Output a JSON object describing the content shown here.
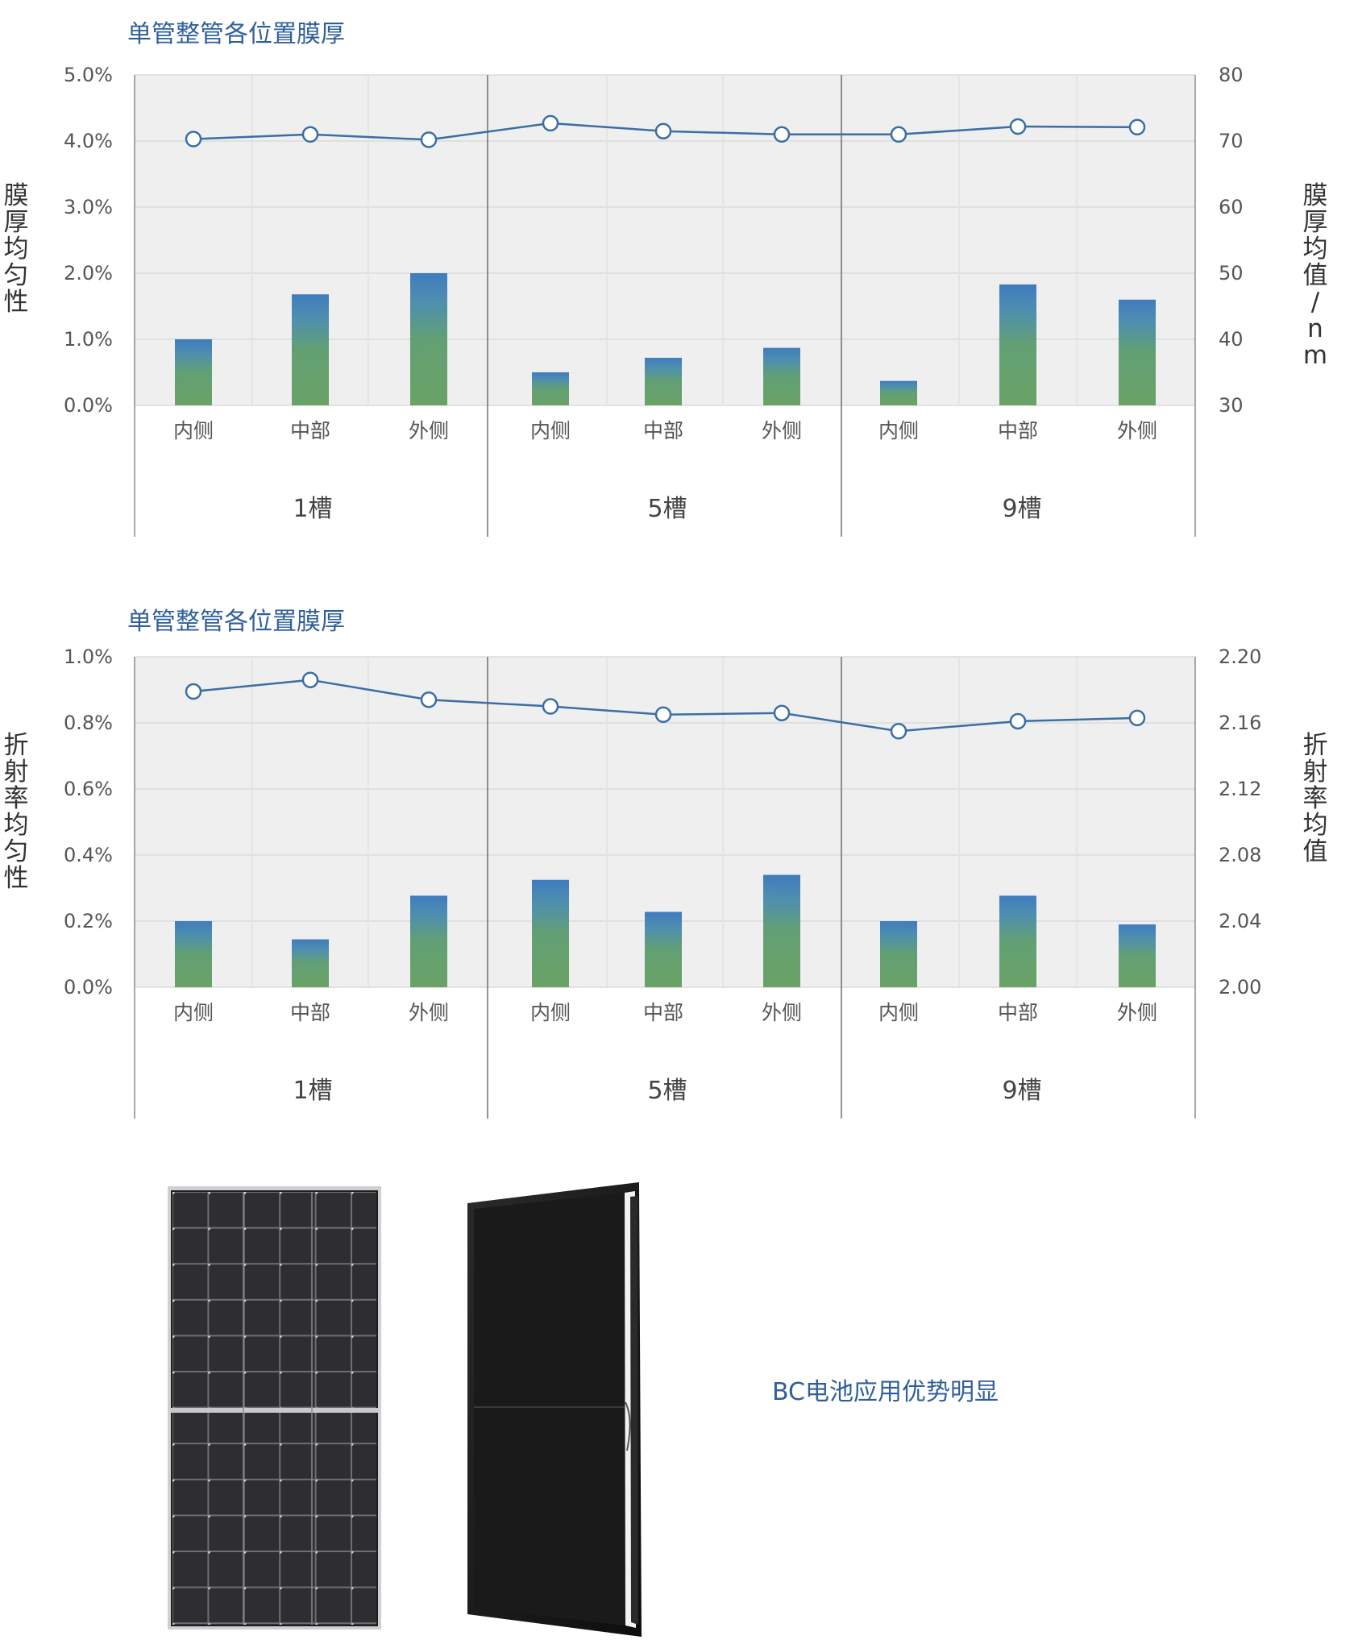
{
  "chart_data": [
    {
      "type": "bar",
      "title": "单管整管各位置膜厚",
      "categories": [
        "内侧",
        "中部",
        "外侧",
        "内侧",
        "中部",
        "外侧",
        "内侧",
        "中部",
        "外侧"
      ],
      "groups": [
        "1槽",
        "5槽",
        "9槽"
      ],
      "ylabel": "膜厚均匀性",
      "y2label": "膜厚均值/nm",
      "ylim": [
        0,
        5
      ],
      "y2lim": [
        30,
        80
      ],
      "yticks": [
        "0.0%",
        "1.0%",
        "2.0%",
        "3.0%",
        "4.0%",
        "5.0%"
      ],
      "y2ticks": [
        "30",
        "40",
        "50",
        "60",
        "70",
        "80"
      ],
      "grid": true,
      "series": [
        {
          "type": "bar",
          "axis": "left",
          "values": [
            1.0,
            1.68,
            2.0,
            0.5,
            0.72,
            0.87,
            0.37,
            1.83,
            1.6
          ]
        },
        {
          "type": "line",
          "axis": "right",
          "values": [
            70.3,
            71.0,
            70.2,
            72.7,
            71.5,
            71.0,
            71.0,
            72.2,
            72.1
          ]
        }
      ]
    },
    {
      "type": "bar",
      "title": "单管整管各位置膜厚",
      "categories": [
        "内侧",
        "中部",
        "外侧",
        "内侧",
        "中部",
        "外侧",
        "内侧",
        "中部",
        "外侧"
      ],
      "groups": [
        "1槽",
        "5槽",
        "9槽"
      ],
      "ylabel": "折射率均匀性",
      "y2label": "折射率均值",
      "ylim": [
        0,
        1.0
      ],
      "y2lim": [
        2.0,
        2.2
      ],
      "yticks": [
        "0.0%",
        "0.2%",
        "0.4%",
        "0.6%",
        "0.8%",
        "1.0%"
      ],
      "y2ticks": [
        "2.00",
        "2.04",
        "2.08",
        "2.12",
        "2.16",
        "2.20"
      ],
      "grid": true,
      "series": [
        {
          "type": "bar",
          "axis": "left",
          "values": [
            0.2,
            0.145,
            0.277,
            0.325,
            0.228,
            0.34,
            0.2,
            0.277,
            0.19
          ]
        },
        {
          "type": "line",
          "axis": "right",
          "values": [
            2.179,
            2.186,
            2.174,
            2.17,
            2.165,
            2.166,
            2.155,
            2.161,
            2.163
          ]
        }
      ]
    }
  ],
  "caption": "BC电池应用优势明显",
  "colors": {
    "title": "#2f5f9a",
    "line": "#3a6ea5",
    "bar_top": "#3f7cbf",
    "bar_bottom": "#6aa266",
    "plot_bg": "#efefef"
  },
  "icons": [
    "solar-panel-front-icon",
    "solar-panel-angled-icon"
  ]
}
